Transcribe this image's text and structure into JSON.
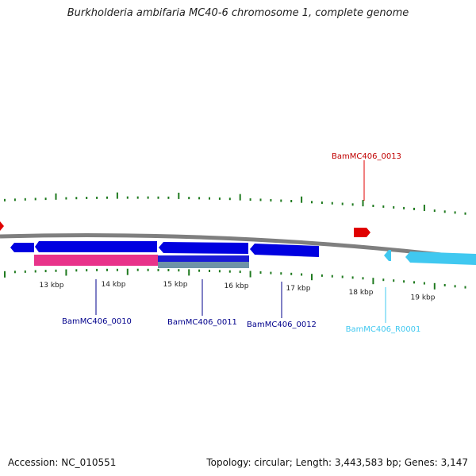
{
  "title": "Burkholderia ambifaria MC40-6 chromosome 1, complete genome",
  "footer": {
    "accession": "Accession: NC_010551",
    "topology": "Topology: circular; Length: 3,443,583 bp; Genes: 3,147"
  },
  "colors": {
    "backbone": "#7f7f7f",
    "tick": "#1f7a1f",
    "cds": "#0000e0",
    "cds_alt": "#1e73d8",
    "gene_pink": "#e8338a",
    "gene_blue": "#1a1ad6",
    "gene_grey": "#6f93a8",
    "trna": "#e00000",
    "rrna": "#40c8f0",
    "label_cds": "#00008b",
    "label_trna": "#c00000",
    "label_rrna": "#40c8f0"
  },
  "scale_labels": [
    "13 kbp",
    "14 kbp",
    "15 kbp",
    "16 kbp",
    "17 kbp",
    "18 kbp",
    "19 kbp"
  ],
  "genes": [
    {
      "label": "BamMC406_0010",
      "kind": "cds"
    },
    {
      "label": "BamMC406_0011",
      "kind": "cds"
    },
    {
      "label": "BamMC406_0012",
      "kind": "cds"
    },
    {
      "label": "BamMC406_0013",
      "kind": "trna"
    },
    {
      "label": "BamMC406_R0001",
      "kind": "rrna"
    }
  ]
}
